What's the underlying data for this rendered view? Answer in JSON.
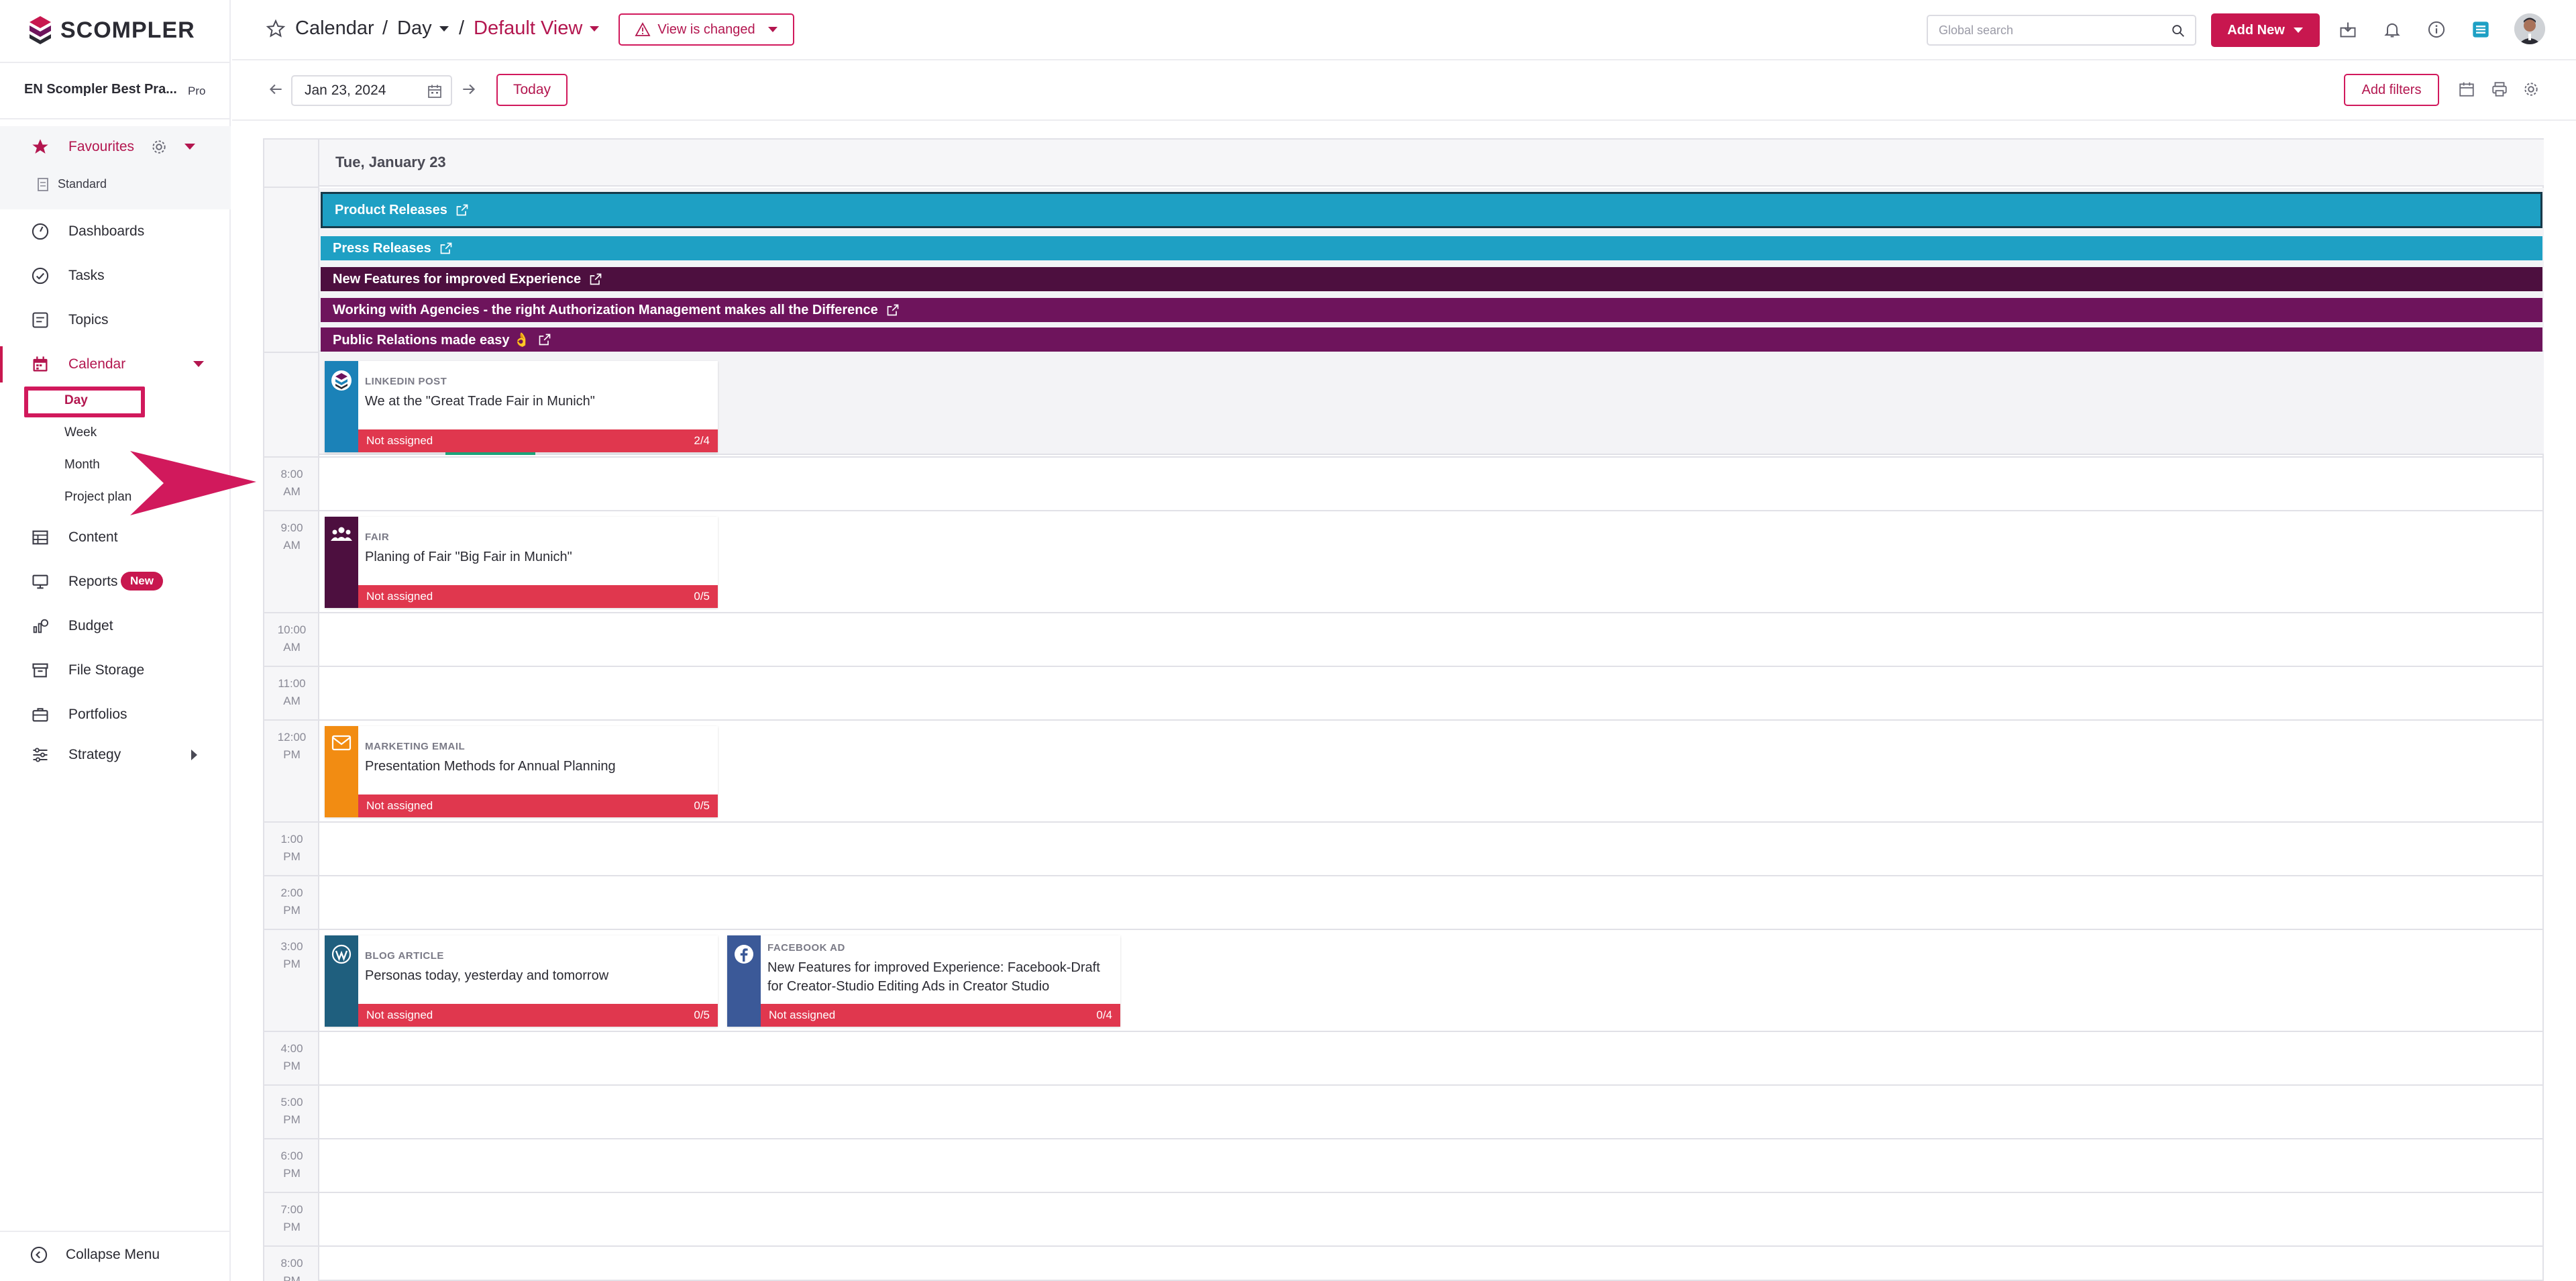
{
  "app": {
    "brand": "SCOMPLER",
    "workspace": "EN Scompler Best Pra...",
    "plan": "Pro"
  },
  "sidebar": {
    "favourites": {
      "label": "Favourites",
      "sub": "Standard"
    },
    "items": [
      {
        "label": "Dashboards",
        "icon": "dashboard-icon"
      },
      {
        "label": "Tasks",
        "icon": "check-circle-icon"
      },
      {
        "label": "Topics",
        "icon": "topics-icon"
      },
      {
        "label": "Calendar",
        "icon": "calendar-icon"
      },
      {
        "label": "Content",
        "icon": "table-icon"
      },
      {
        "label": "Reports",
        "icon": "reports-icon",
        "badge": "New"
      },
      {
        "label": "Budget",
        "icon": "budget-icon"
      },
      {
        "label": "File Storage",
        "icon": "archive-icon"
      },
      {
        "label": "Portfolios",
        "icon": "briefcase-icon"
      },
      {
        "label": "Strategy",
        "icon": "sliders-icon"
      }
    ],
    "calendar_sub": [
      "Day",
      "Week",
      "Month",
      "Project plan"
    ],
    "collapse": "Collapse Menu"
  },
  "header": {
    "crumb_calendar": "Calendar",
    "crumb_sep": "/",
    "crumb_day": "Day",
    "crumb_view": "Default View",
    "view_changed": "View is changed",
    "search_placeholder": "Global search",
    "add_new": "Add New"
  },
  "toolbar": {
    "date": "Jan 23, 2024",
    "today": "Today",
    "add_filters": "Add filters"
  },
  "calendar": {
    "day_heading": "Tue, January 23",
    "all_day_bars": [
      {
        "label": "Product Releases",
        "color": "#1ea0c4"
      },
      {
        "label": "Press Releases",
        "color": "#1ea0c4"
      },
      {
        "label": "New Features for improved Experience",
        "color": "#4d0f3f"
      },
      {
        "label": "Working with Agencies - the right Authorization Management makes all the Difference",
        "color": "#6e145c"
      },
      {
        "label": "Public Relations made easy 👌",
        "color": "#6e145c"
      }
    ],
    "hours": [
      [
        "8:00",
        "AM"
      ],
      [
        "9:00",
        "AM"
      ],
      [
        "10:00",
        "AM"
      ],
      [
        "11:00",
        "AM"
      ],
      [
        "12:00",
        "PM"
      ],
      [
        "1:00",
        "PM"
      ],
      [
        "2:00",
        "PM"
      ],
      [
        "3:00",
        "PM"
      ],
      [
        "4:00",
        "PM"
      ],
      [
        "5:00",
        "PM"
      ],
      [
        "6:00",
        "PM"
      ],
      [
        "7:00",
        "PM"
      ],
      [
        "8:00",
        "PM"
      ]
    ],
    "cards": [
      {
        "type": "LINKEDIN POST",
        "title": "We at the \"Great Trade Fair in Munich\"",
        "status": "Not assigned",
        "count": "2/4",
        "color": "#1b82b8",
        "icon": "scompler-logo-icon"
      },
      {
        "type": "FAIR",
        "title": "Planing of Fair \"Big Fair in Munich\"",
        "status": "Not assigned",
        "count": "0/5",
        "color": "#4d0f3f",
        "icon": "people-icon"
      },
      {
        "type": "MARKETING EMAIL",
        "title": "Presentation Methods for Annual Planning",
        "status": "Not assigned",
        "count": "0/5",
        "color": "#f28c12",
        "icon": "envelope-icon"
      },
      {
        "type": "BLOG ARTICLE",
        "title": "Personas today, yesterday and tomorrow",
        "status": "Not assigned",
        "count": "0/5",
        "color": "#1f5f7e",
        "icon": "wordpress-icon"
      },
      {
        "type": "FACEBOOK AD",
        "title": "New Features for improved Experience: Facebook-Draft for Creator-Studio Editing Ads in Creator Studio",
        "status": "Not assigned",
        "count": "0/4",
        "color": "#3b5998",
        "icon": "facebook-icon"
      }
    ]
  },
  "colors": {
    "accent": "#c8174f",
    "status_red": "#e0374e",
    "arrow": "#d1195c"
  }
}
